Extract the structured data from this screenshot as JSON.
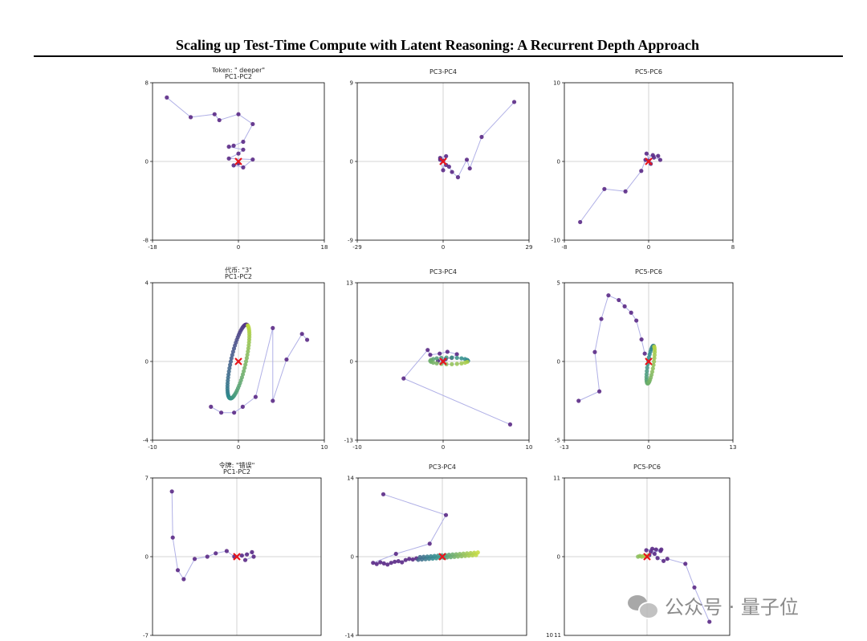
{
  "page": {
    "title": "Scaling up Test-Time Compute with Latent Reasoning: A Recurrent Depth Approach",
    "watermark": "公众号 · 量子位",
    "watermark_icon": "wechat-icon"
  },
  "colors": {
    "trajectory_line": "#b0b0e6",
    "early_point": "#5b2a86",
    "mid_point": "#2b8c8c",
    "late_point": "#c4dc3a",
    "marker": "#e8151b",
    "axis_line": "#c8c8c8"
  },
  "chart_data": [
    {
      "type": "scatter",
      "panel": "row1-col1",
      "title": "PC1-PC2",
      "row_label": "Token: \" deeper\"",
      "xlim": [
        -18,
        18
      ],
      "ylim": [
        -8,
        8
      ],
      "xticks": [
        "-18",
        "0",
        "18"
      ],
      "yticks": [
        "8",
        "0",
        "-8"
      ],
      "converge_marker": [
        0,
        0
      ],
      "points": [
        [
          -15,
          6.5
        ],
        [
          -10,
          4.5
        ],
        [
          -5,
          4.8
        ],
        [
          -4,
          4.2
        ],
        [
          0,
          4.8
        ],
        [
          3,
          3.8
        ],
        [
          1,
          2
        ],
        [
          -1,
          1.6
        ],
        [
          -2,
          1.5
        ],
        [
          1,
          1.2
        ],
        [
          0,
          0.8
        ],
        [
          -2,
          0.3
        ],
        [
          3,
          0.2
        ],
        [
          1,
          -0.6
        ],
        [
          -1,
          -0.4
        ],
        [
          0,
          -0.2
        ]
      ]
    },
    {
      "type": "scatter",
      "panel": "row1-col2",
      "title": "PC3-PC4",
      "xlim": [
        -29,
        29
      ],
      "ylim": [
        -9,
        9
      ],
      "xticks": [
        "-29",
        "0",
        "29"
      ],
      "yticks": [
        "9",
        "0",
        "-9"
      ],
      "converge_marker": [
        0,
        0
      ],
      "points": [
        [
          24,
          6.8
        ],
        [
          13,
          2.8
        ],
        [
          9,
          -0.8
        ],
        [
          8,
          0.2
        ],
        [
          5,
          -1.8
        ],
        [
          3,
          -1.2
        ],
        [
          2,
          -0.6
        ],
        [
          1,
          -0.4
        ],
        [
          -1,
          0.4
        ],
        [
          1,
          0.6
        ],
        [
          0,
          -1
        ],
        [
          -1,
          0.2
        ],
        [
          0,
          0.1
        ]
      ]
    },
    {
      "type": "scatter",
      "panel": "row1-col3",
      "title": "PC5-PC6",
      "xlim": [
        -8,
        8
      ],
      "ylim": [
        -10,
        10
      ],
      "xticks": [
        "-8",
        "0",
        "8"
      ],
      "yticks": [
        "10",
        "0",
        "-10"
      ],
      "converge_marker": [
        0,
        0
      ],
      "points": [
        [
          -6.5,
          -7.7
        ],
        [
          -4.2,
          -3.5
        ],
        [
          -2.2,
          -3.8
        ],
        [
          -0.7,
          -1.2
        ],
        [
          -0.3,
          0.2
        ],
        [
          0.4,
          0.8
        ],
        [
          0.9,
          0.7
        ],
        [
          1.1,
          0.2
        ],
        [
          0.5,
          0.5
        ],
        [
          -0.2,
          1
        ],
        [
          0.2,
          -0.3
        ],
        [
          0,
          0.1
        ]
      ]
    },
    {
      "type": "scatter",
      "panel": "row2-col1",
      "title": "PC1-PC2",
      "row_label": "代币: \"3\"",
      "xlim": [
        -10,
        10
      ],
      "ylim": [
        -4,
        4
      ],
      "xticks": [
        "-10",
        "0",
        "10"
      ],
      "yticks": [
        "4",
        "0",
        "-4"
      ],
      "converge_marker": [
        0,
        0
      ],
      "points": [
        [
          8,
          1.1
        ],
        [
          7.4,
          1.4
        ],
        [
          5.6,
          0.1
        ],
        [
          4.0,
          -2.0
        ],
        [
          4.0,
          1.7
        ],
        [
          2.0,
          -1.8
        ],
        [
          0.5,
          -2.3
        ],
        [
          -0.5,
          -2.6
        ],
        [
          -2.0,
          -2.6
        ],
        [
          -3.2,
          -2.3
        ]
      ]
    },
    {
      "type": "scatter",
      "panel": "row2-col2",
      "title": "PC3-PC4",
      "xlim": [
        -10,
        10
      ],
      "ylim": [
        -13,
        13
      ],
      "xticks": [
        "-10",
        "0",
        "10"
      ],
      "yticks": [
        "13",
        "0",
        "-13"
      ],
      "converge_marker": [
        0,
        0
      ],
      "points": [
        [
          7.8,
          -10.4
        ],
        [
          -4.6,
          -2.8
        ],
        [
          -1.8,
          1.9
        ],
        [
          -1.5,
          1.1
        ],
        [
          -0.4,
          1.3
        ],
        [
          0.5,
          1.6
        ],
        [
          1.6,
          1.2
        ],
        [
          1.0,
          0.6
        ],
        [
          0.3,
          0.4
        ],
        [
          -0.6,
          0.1
        ],
        [
          0.0,
          0.0
        ]
      ]
    },
    {
      "type": "scatter",
      "panel": "row2-col3",
      "title": "PC5-PC6",
      "xlim": [
        -13,
        13
      ],
      "ylim": [
        -5,
        5
      ],
      "xticks": [
        "-13",
        "0",
        "13"
      ],
      "yticks": [
        "5",
        "0",
        "-5"
      ],
      "converge_marker": [
        0,
        0
      ],
      "points": [
        [
          -10.8,
          -2.5
        ],
        [
          -7.6,
          -1.9
        ],
        [
          -8.3,
          0.6
        ],
        [
          -7.3,
          2.7
        ],
        [
          -6.2,
          4.2
        ],
        [
          -4.6,
          3.9
        ],
        [
          -3.7,
          3.5
        ],
        [
          -2.7,
          3.1
        ],
        [
          -1.9,
          2.6
        ],
        [
          -1.1,
          1.4
        ],
        [
          -0.6,
          0.5
        ]
      ]
    },
    {
      "type": "scatter",
      "panel": "row3-col1",
      "title": "PC1-PC2",
      "row_label": "令牌: \"错误\"",
      "xlim": [
        -10,
        10
      ],
      "ylim": [
        -7,
        7
      ],
      "xticks": [],
      "yticks": [
        "7",
        "0",
        "-7"
      ],
      "converge_marker": [
        0,
        0
      ],
      "points": [
        [
          -7.7,
          5.8
        ],
        [
          -7.6,
          1.7
        ],
        [
          -7.0,
          -1.2
        ],
        [
          -6.3,
          -2.0
        ],
        [
          -5.0,
          -0.2
        ],
        [
          -3.5,
          0.0
        ],
        [
          -2.5,
          0.3
        ],
        [
          -1.2,
          0.5
        ],
        [
          -0.3,
          0.0
        ],
        [
          0.6,
          0.1
        ],
        [
          1.2,
          0.2
        ],
        [
          1.8,
          0.4
        ],
        [
          2.0,
          0.0
        ],
        [
          1.0,
          -0.3
        ]
      ]
    },
    {
      "type": "scatter",
      "panel": "row3-col2",
      "title": "PC3-PC4",
      "xlim": [
        -14,
        14
      ],
      "ylim": [
        -14,
        14
      ],
      "xticks": [],
      "yticks": [
        "14",
        "0",
        "-14"
      ],
      "converge_marker": [
        0,
        0
      ],
      "points": [
        [
          -9.8,
          11.1
        ],
        [
          0.6,
          7.4
        ],
        [
          -2.1,
          2.3
        ],
        [
          -7.7,
          0.5
        ],
        [
          -11.5,
          -1.1
        ],
        [
          -10.9,
          -1.3
        ],
        [
          -10.3,
          -1.0
        ],
        [
          -9.7,
          -1.2
        ],
        [
          -9.1,
          -1.4
        ],
        [
          -8.5,
          -1.1
        ],
        [
          -7.9,
          -0.9
        ],
        [
          -7.3,
          -0.8
        ],
        [
          -6.7,
          -1.0
        ],
        [
          -6.1,
          -0.6
        ],
        [
          -5.5,
          -0.4
        ],
        [
          -4.9,
          -0.5
        ],
        [
          -4.3,
          -0.3
        ]
      ]
    },
    {
      "type": "scatter",
      "panel": "row3-col3",
      "title": "PC5-PC6",
      "xlim": [
        -11,
        11
      ],
      "ylim": [
        -11,
        11
      ],
      "xticks": [
        "10",
        "11"
      ],
      "yticks": [
        "11",
        "0"
      ],
      "converge_marker": [
        0,
        0
      ],
      "points": [
        [
          8.3,
          -9.1
        ],
        [
          6.3,
          -4.3
        ],
        [
          5.1,
          -1.0
        ],
        [
          2.7,
          -0.3
        ],
        [
          2.2,
          -0.6
        ],
        [
          1.4,
          -0.2
        ],
        [
          1.0,
          0.4
        ],
        [
          0.5,
          0.7
        ],
        [
          1.8,
          0.8
        ],
        [
          1.2,
          1.0
        ],
        [
          -0.1,
          0.9
        ],
        [
          0.7,
          1.1
        ],
        [
          1.9,
          1.0
        ],
        [
          0.3,
          0.2
        ]
      ]
    }
  ]
}
